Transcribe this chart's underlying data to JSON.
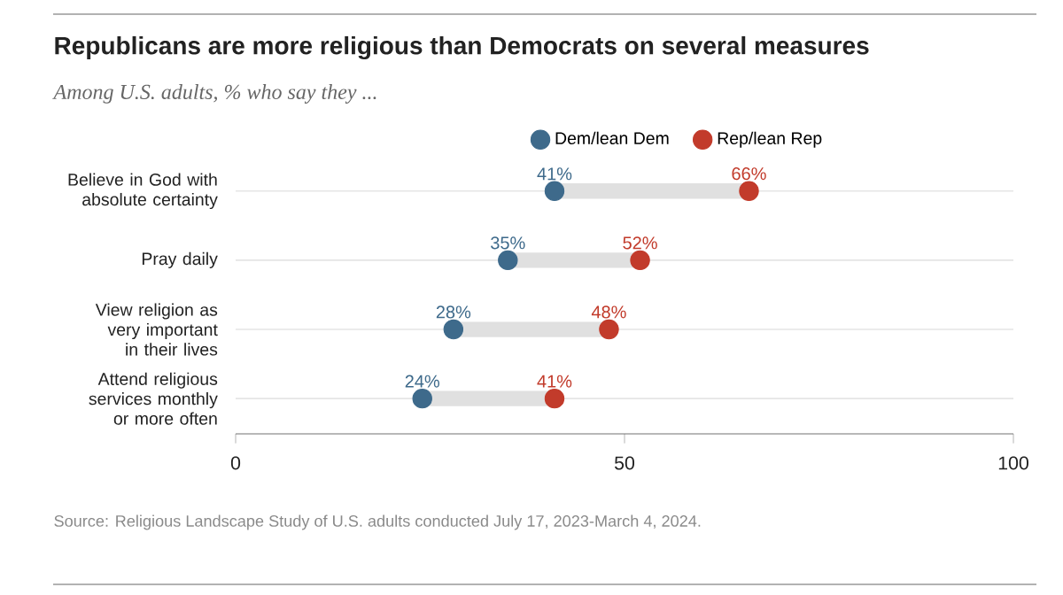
{
  "chart_data": {
    "type": "scatter",
    "title": "Republicans are more religious than Democrats on several measures",
    "subtitle": "Among U.S. adults, % who say they ...",
    "categories": [
      "Believe in God with absolute certainty",
      "Pray daily",
      "View religion as very important in their lives",
      "Attend religious services monthly or more often"
    ],
    "series": [
      {
        "name": "Dem/lean Dem",
        "color": "#3e6a8b",
        "values": [
          41,
          35,
          28,
          24
        ],
        "value_labels": [
          "41%",
          "35%",
          "28%",
          "24%"
        ]
      },
      {
        "name": "Rep/lean Rep",
        "color": "#c23b2b",
        "values": [
          66,
          52,
          48,
          41
        ],
        "value_labels": [
          "66%",
          "52%",
          "48%",
          "41%"
        ]
      }
    ],
    "orientation": "horizontal",
    "xlim": [
      0,
      100
    ],
    "xticks": [
      {
        "value": 0,
        "label": "0"
      },
      {
        "value": 50,
        "label": "50"
      },
      {
        "value": 100,
        "label": "100"
      }
    ],
    "grid": "y",
    "legend": "top",
    "marker": "circle",
    "annotations": [
      "Source: Religious Landscape Study of U.S. adults conducted July 17, 2023-March 4, 2024."
    ]
  }
}
